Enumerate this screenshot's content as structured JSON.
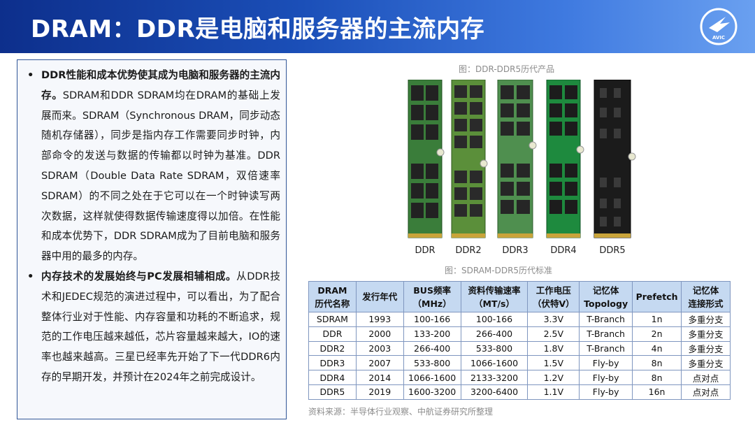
{
  "header": {
    "title": "DRAM：DDR是电脑和服务器的主流内存",
    "logo_text": "AVIC"
  },
  "left_panel": {
    "bullets": [
      {
        "bold": "DDR性能和成本优势使其成为电脑和服务器的主流内存。",
        "text": "SDRAM和DDR SDRAM均在DRAM的基础上发展而来。SDRAM（Synchronous DRAM，同步动态随机存储器），同步是指内存工作需要同步时钟，内部命令的发送与数据的传输都以时钟为基准。DDR SDRAM（Double Data Rate SDRAM，双倍速率SDRAM）的不同之处在于它可以在一个时钟读写两次数据，这样就使得数据传输速度得以加倍。在性能和成本优势下，DDR SDRAM成为了目前电脑和服务器中用的最多的内存。"
      },
      {
        "bold": "内存技术的发展始终与PC发展相辅相成。",
        "text": "从DDR技术和JEDEC规范的演进过程中，可以看出，为了配合整体行业对于性能、内存容量和功耗的不断追求，规范的工作电压越来越低，芯片容量越来越大，IO的速率也越来越高。三星已经率先开始了下一代DDR6内存的早期开发，并预计在2024年之前完成设计。"
      }
    ],
    "bullet_symbol": "•"
  },
  "figure1": {
    "caption": "图：DDR-DDR5历代产品",
    "labels": [
      "DDR",
      "DDR2",
      "DDR3",
      "DDR4",
      "DDR5"
    ]
  },
  "figure2": {
    "caption": "图：SDRAM-DDR5历代标准"
  },
  "table": {
    "headers": [
      [
        "DRAM",
        "历代名称"
      ],
      [
        "发行年代"
      ],
      [
        "BUS频率",
        "（MHz）"
      ],
      [
        "资料传输速率",
        "（MT/s）"
      ],
      [
        "工作电压",
        "（伏特V）"
      ],
      [
        "记忆体",
        "Topology"
      ],
      [
        "Prefetch"
      ],
      [
        "记忆体",
        "连接形式"
      ]
    ],
    "rows": [
      [
        "SDRAM",
        "1993",
        "100-166",
        "100-166",
        "3.3V",
        "T-Branch",
        "1n",
        "多重分支"
      ],
      [
        "DDR",
        "2000",
        "133-200",
        "266-400",
        "2.5V",
        "T-Branch",
        "2n",
        "多重分支"
      ],
      [
        "DDR2",
        "2003",
        "266-400",
        "533-800",
        "1.8V",
        "T-Branch",
        "4n",
        "多重分支"
      ],
      [
        "DDR3",
        "2007",
        "533-800",
        "1066-1600",
        "1.5V",
        "Fly-by",
        "8n",
        "多重分支"
      ],
      [
        "DDR4",
        "2014",
        "1066-1600",
        "2133-3200",
        "1.2V",
        "Fly-by",
        "8n",
        "点对点"
      ],
      [
        "DDR5",
        "2019",
        "1600-3200",
        "3200-6400",
        "1.1V",
        "Fly-by",
        "16n",
        "点对点"
      ]
    ]
  },
  "source": "资料来源：半导体行业观察、中航证券研究所整理",
  "colors": {
    "title_bar_dark": "#0d2f8c",
    "title_bar_light": "#6aa0f0",
    "panel_border": "#2f5597",
    "table_header_bg": "#c5d9f1",
    "pcb_green": "#2e7d32",
    "pcb_dark": "#1b1b1b"
  }
}
